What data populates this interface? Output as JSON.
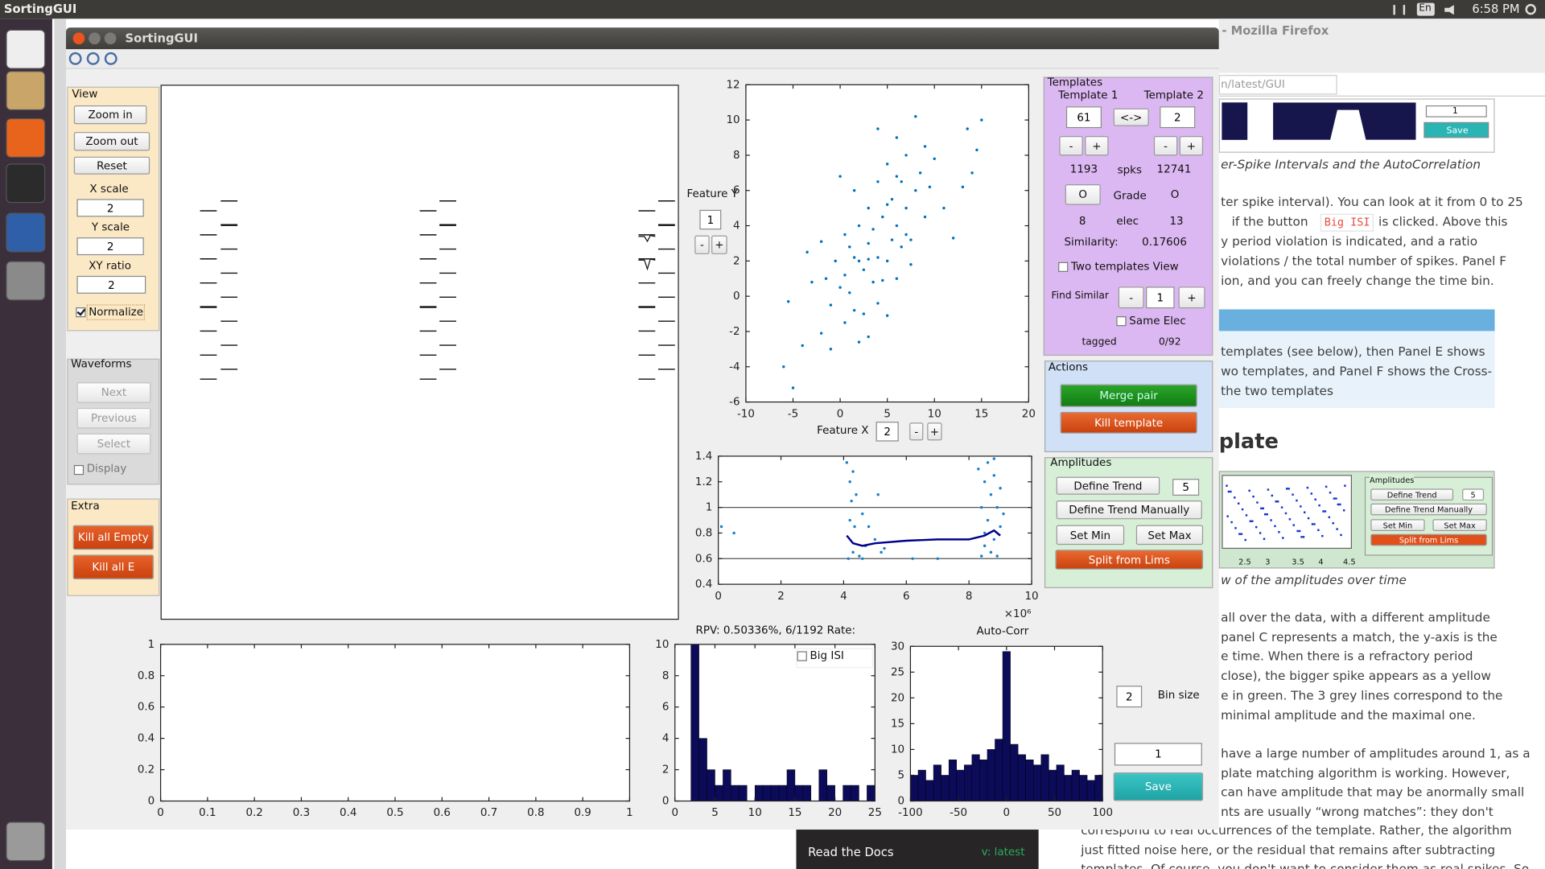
{
  "topbar": {
    "app_name": "SortingGUI",
    "keyboard": "En",
    "clock": "6:58 PM"
  },
  "window": {
    "title": "SortingGUI"
  },
  "view_panel": {
    "title": "View",
    "zoom_in": "Zoom in",
    "zoom_out": "Zoom out",
    "reset": "Reset",
    "x_scale_label": "X scale",
    "x_scale": "2",
    "y_scale_label": "Y scale",
    "y_scale": "2",
    "xy_ratio_label": "XY ratio",
    "xy_ratio": "2",
    "normalize": "Normalize"
  },
  "waveforms_panel": {
    "title": "Waveforms",
    "next": "Next",
    "previous": "Previous",
    "select": "Select",
    "display": "Display"
  },
  "extra_panel": {
    "title": "Extra",
    "kill_empty": "Kill all Empty",
    "kill_e": "Kill all E"
  },
  "feature": {
    "y_label": "Feature Y",
    "y_value": "1",
    "x_label": "Feature X",
    "x_value": "2",
    "minus": "-",
    "plus": "+"
  },
  "templates_panel": {
    "title": "Templates",
    "template_1": "Template 1",
    "template_2": "Template 2",
    "t1_value": "61",
    "swap": "<->",
    "t2_value": "2",
    "minus": "-",
    "plus": "+",
    "t1_spikes": "1193",
    "spikes_label": "spks",
    "t2_spikes": "12741",
    "grade_button": "O",
    "grade_label": "Grade",
    "t2_grade": "O",
    "t1_elec": "8",
    "elec_label": "elec",
    "t2_elec": "13",
    "similarity_label": "Similarity:",
    "similarity": "0.17606",
    "two_templates_view": "Two templates View",
    "find_similar": "Find Similar",
    "find_value": "1",
    "same_elec": "Same Elec",
    "tagged_label": "tagged",
    "tagged": "0/92"
  },
  "actions_panel": {
    "title": "Actions",
    "merge_pair": "Merge pair",
    "kill_template": "Kill template"
  },
  "amplitudes_panel": {
    "title": "Amplitudes",
    "define_trend": "Define Trend",
    "trend_value": "5",
    "define_trend_manually": "Define Trend Manually",
    "set_min": "Set Min",
    "set_max": "Set Max",
    "split_from_lims": "Split from Lims"
  },
  "isi_panel": {
    "rpv": "RPV: 0.50336%, 6/1192 Rate:",
    "big_isi": "Big ISI",
    "autocorr_title": "Auto-Corr",
    "bin_size": "2",
    "bin_size_label": "Bin size",
    "save_value": "1",
    "save": "Save"
  },
  "chart_data": [
    {
      "type": "scatter",
      "color": "#0072bd",
      "xlim": [
        -10,
        20
      ],
      "xticks": [
        -10,
        -5,
        0,
        5,
        10,
        15,
        20
      ],
      "ylim": [
        -6,
        12
      ],
      "yticks": [
        -6,
        -4,
        -2,
        0,
        2,
        4,
        6,
        8,
        10,
        12
      ],
      "x": [
        -6,
        -5.5,
        -5,
        -4,
        -3.5,
        -3,
        -2,
        -2,
        -1.5,
        -1,
        -1,
        -0.5,
        0,
        0,
        0.5,
        0.5,
        1,
        1,
        1.5,
        1.5,
        2,
        2,
        2.5,
        2.5,
        3,
        3,
        3,
        3.5,
        3.5,
        4,
        4,
        4,
        4.5,
        4.5,
        5,
        5,
        5,
        5.5,
        5.5,
        6,
        6,
        6,
        6.5,
        6.5,
        7,
        7,
        7,
        7.5,
        8,
        8,
        8.5,
        9,
        9,
        9.5,
        10,
        11,
        12,
        13,
        13.5,
        14,
        14.5,
        15,
        0.5,
        1.5,
        4,
        6,
        2,
        3,
        5,
        7.5
      ],
      "y": [
        -4,
        -0.3,
        -5.2,
        -2.8,
        2.5,
        0.8,
        -2.1,
        3.1,
        1,
        -3,
        -0.5,
        2,
        0.5,
        6.8,
        -1.5,
        3.5,
        2.8,
        0.2,
        6,
        -0.8,
        2,
        4,
        1.5,
        -1,
        3,
        5,
        -2.3,
        0.8,
        3.8,
        2.2,
        6.5,
        -0.4,
        4.5,
        0.9,
        2,
        7.5,
        -1.1,
        3.2,
        5.5,
        9,
        1,
        4,
        6.5,
        2.8,
        8,
        3.5,
        5,
        1.8,
        10.2,
        6,
        7,
        4.5,
        8.5,
        6.2,
        7.8,
        5,
        3.3,
        6.2,
        9.5,
        7,
        8.3,
        10,
        1.2,
        2.2,
        9.5,
        6.8,
        -2.6,
        2.1,
        5.2,
        3.2
      ]
    },
    {
      "type": "scatter",
      "color": "#1a7fc8",
      "xlim": [
        0,
        10
      ],
      "xticks": [
        0,
        2,
        4,
        6,
        8,
        10
      ],
      "x_exponent_label": "×10⁶",
      "ylim": [
        0.4,
        1.4
      ],
      "yticks": [
        0.4,
        0.6,
        0.8,
        1,
        1.2,
        1.4
      ],
      "limits": [
        0.6,
        1,
        1.4
      ],
      "x": [
        0.1,
        0.5,
        4.1,
        4.15,
        4.2,
        4.2,
        4.25,
        4.3,
        4.35,
        4.4,
        4.5,
        4.6,
        4.7,
        4.8,
        5,
        5.1,
        5.2,
        5.3,
        4.3,
        4.6,
        6.2,
        7,
        8.3,
        8.4,
        8.4,
        8.5,
        8.5,
        8.6,
        8.6,
        8.7,
        8.7,
        8.8,
        8.8,
        8.9,
        8.9,
        9,
        9,
        9.1,
        8.5,
        8.8
      ],
      "y": [
        0.85,
        0.8,
        1.35,
        0.6,
        1.2,
        0.9,
        1.05,
        0.65,
        0.85,
        1.1,
        0.62,
        0.95,
        0.7,
        0.85,
        0.75,
        1.1,
        0.65,
        0.68,
        1.28,
        0.6,
        0.6,
        0.6,
        1.3,
        0.62,
        1,
        1.2,
        0.8,
        1.35,
        0.9,
        0.65,
        1.1,
        1.25,
        0.75,
        1,
        0.62,
        1.15,
        0.85,
        0.95,
        0.7,
        1.38
      ],
      "trend": {
        "color": "#00008b",
        "x": [
          4.1,
          4.3,
          4.6,
          5,
          6,
          7,
          8,
          8.5,
          8.8,
          9
        ],
        "y": [
          0.78,
          0.72,
          0.7,
          0.72,
          0.74,
          0.75,
          0.75,
          0.78,
          0.82,
          0.78
        ]
      }
    },
    {
      "type": "empty",
      "xlim": [
        0,
        1
      ],
      "xticks": [
        0,
        0.1,
        0.2,
        0.3,
        0.4,
        0.5,
        0.6,
        0.7,
        0.8,
        0.9,
        1
      ],
      "ylim": [
        0,
        1
      ],
      "yticks": [
        0,
        0.2,
        0.4,
        0.6,
        0.8,
        1
      ]
    },
    {
      "type": "histogram",
      "color": "#0b0b5a",
      "xlim": [
        0,
        25
      ],
      "xticks": [
        0,
        5,
        10,
        15,
        20,
        25
      ],
      "ylim": [
        0,
        10
      ],
      "yticks": [
        0,
        2,
        4,
        6,
        8,
        10
      ],
      "bins": [
        0,
        1,
        2,
        3,
        4,
        5,
        6,
        7,
        8,
        9,
        10,
        11,
        12,
        13,
        14,
        15,
        16,
        17,
        18,
        19,
        20,
        21,
        22,
        23,
        24,
        25
      ],
      "counts": [
        0,
        0,
        10,
        4,
        2,
        1,
        2,
        1,
        1,
        0,
        1,
        1,
        1,
        1,
        2,
        1,
        1,
        0,
        2,
        1,
        0,
        1,
        1,
        0,
        1
      ]
    },
    {
      "type": "histogram",
      "color": "#0b0b5a",
      "xlim": [
        -100,
        100
      ],
      "xticks": [
        -100,
        -50,
        0,
        50,
        100
      ],
      "ylim": [
        0,
        30
      ],
      "yticks": [
        0,
        5,
        10,
        15,
        20,
        25,
        30
      ],
      "bins": [
        -100,
        -92,
        -84,
        -76,
        -68,
        -60,
        -52,
        -44,
        -36,
        -28,
        -20,
        -12,
        -4,
        4,
        12,
        20,
        28,
        36,
        44,
        52,
        60,
        68,
        76,
        84,
        92,
        100
      ],
      "counts": [
        5,
        6,
        4,
        7,
        5,
        8,
        6,
        7,
        9,
        8,
        10,
        12,
        29,
        11,
        9,
        8,
        7,
        9,
        6,
        7,
        5,
        6,
        5,
        4,
        5
      ]
    }
  ],
  "browser": {
    "title": "- Mozilla Firefox",
    "url": "n/latest/GUI",
    "mini_input": "1",
    "mini_save": "Save",
    "caption_1": "er-Spike Intervals and the AutoCorrelation",
    "para_1": [
      "ter spike interval). You can look at it from 0 to 25",
      "if the button",
      "Big ISI",
      "is clicked. Above this",
      "y period violation is indicated, and a ratio",
      "violations / the total number of spikes. Panel F",
      "ion, and you can freely change the time bin."
    ],
    "note": [
      "templates (see below), then Panel E shows",
      "wo templates, and Panel F shows the Cross-",
      "the two templates"
    ],
    "heading": "plate",
    "mini_panel": {
      "title": "Amplitudes",
      "define_trend": "Define Trend",
      "value": "5",
      "define_trend_manually": "Define Trend Manually",
      "set_min": "Set Min",
      "set_max": "Set Max",
      "split": "Split from Lims",
      "ticks": [
        "2.5",
        "3",
        "3.5",
        "4",
        "4.5"
      ]
    },
    "caption_2": "w of the amplitudes over time",
    "para_2": [
      "all over the data, with a different amplitude",
      "panel C represents a match, the y-axis is the",
      "e time. When there is a refractory period",
      "close), the bigger spike appears as a yellow",
      "e in green. The 3 grey lines correspond to the",
      "minimal amplitude and the maximal one."
    ],
    "para_3": [
      "have a large number of amplitudes around 1, as a",
      "plate matching algorithm is working. However,",
      "can have amplitude that may be anormally small",
      "nts are usually “wrong matches”: they don't"
    ],
    "para_4": [
      "correspond to real occurrences of the template. Rather, the algorithm",
      "just fitted noise here, or the residual that remains after subtracting",
      "templates. Of course, you don't want to consider them as real spikes. So"
    ],
    "rtd": "Read the Docs",
    "version": "v: latest"
  }
}
